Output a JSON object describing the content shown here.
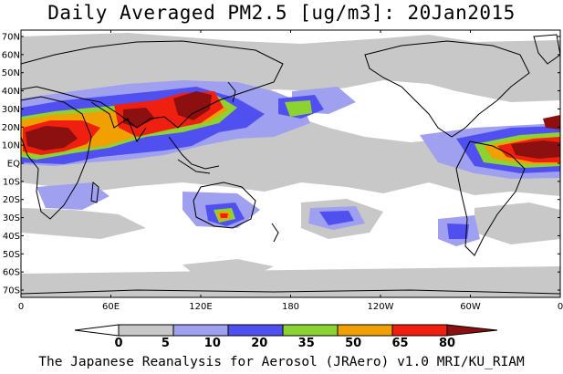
{
  "title": "Daily Averaged PM2.5 [ug/m3]: 20Jan2015",
  "footer": "The Japanese Reanalysis for Aerosol (JRAero) v1.0 MRI/KU_RIAM",
  "lat_labels": [
    "70N",
    "60N",
    "50N",
    "40N",
    "30N",
    "20N",
    "10N",
    "EQ",
    "10S",
    "20S",
    "30S",
    "40S",
    "50S",
    "60S",
    "70S"
  ],
  "lon_labels": [
    "0",
    "60E",
    "120E",
    "180",
    "120W",
    "60W",
    "0"
  ],
  "colorbar": {
    "labels": [
      "0",
      "5",
      "10",
      "20",
      "35",
      "50",
      "65",
      "80"
    ],
    "colors": [
      "#ffffff",
      "#c8c8c8",
      "#a0a0f0",
      "#5050f0",
      "#8cd232",
      "#f0a000",
      "#f02010",
      "#8c1010"
    ]
  },
  "colors": {
    "ocean": "#ffffff",
    "coast": "#000000"
  }
}
